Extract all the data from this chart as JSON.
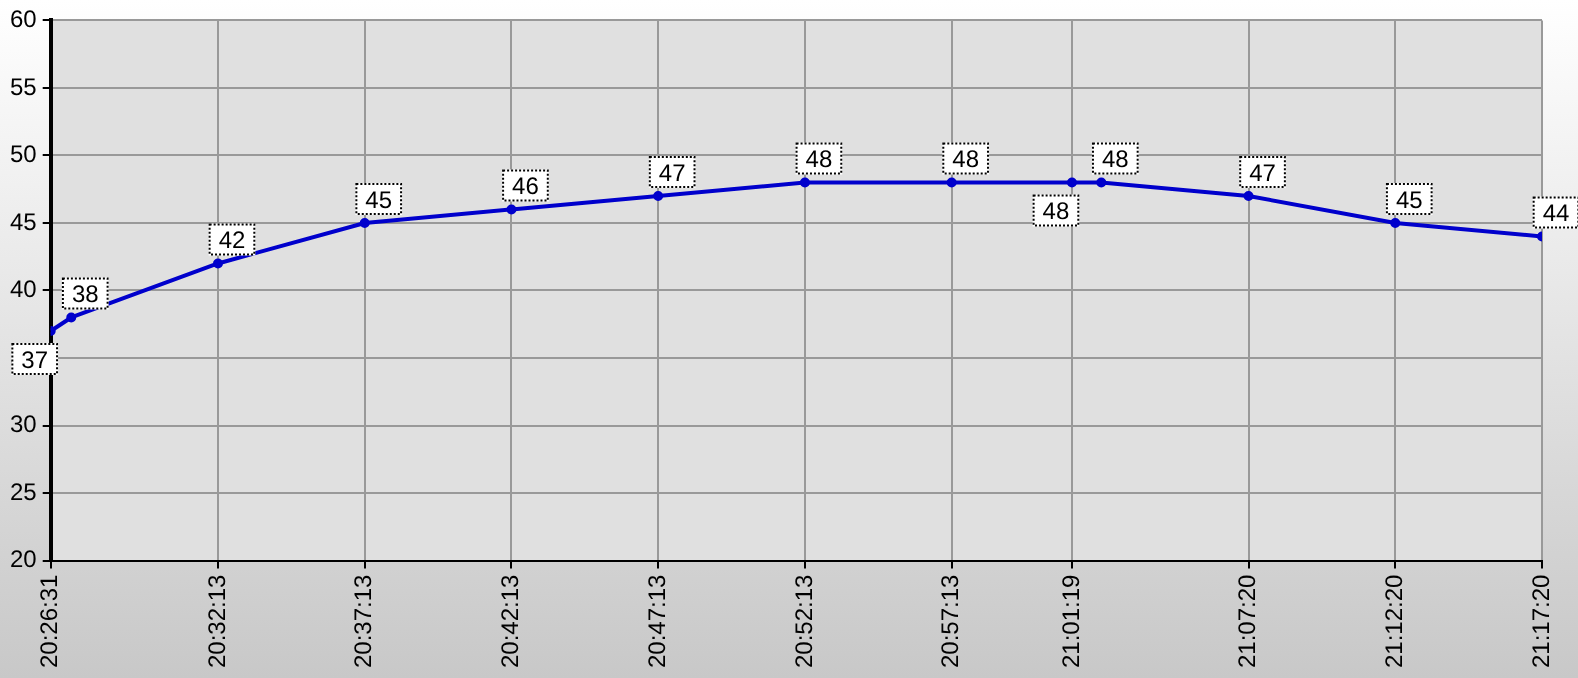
{
  "chart_data": {
    "type": "line",
    "x": [
      20.44194,
      20.45361,
      20.53694,
      20.62028,
      20.70361,
      20.78694,
      20.87028,
      20.95361,
      21.02194,
      21.03861,
      21.12222,
      21.20556,
      21.28889
    ],
    "series": [
      {
        "color": "#0000cc",
        "values": [
          37,
          38,
          42,
          45,
          46,
          47,
          48,
          48,
          48,
          48,
          47,
          45,
          44
        ]
      }
    ],
    "xlim": [
      20.44194,
      21.28889
    ],
    "xticks": [
      {
        "value": 20.44194,
        "label": "20:26:31"
      },
      {
        "value": 20.53694,
        "label": "20:32:13"
      },
      {
        "value": 20.62028,
        "label": "20:37:13"
      },
      {
        "value": 20.70361,
        "label": "20:42:13"
      },
      {
        "value": 20.78694,
        "label": "20:47:13"
      },
      {
        "value": 20.87028,
        "label": "20:52:13"
      },
      {
        "value": 20.95361,
        "label": "20:57:13"
      },
      {
        "value": 21.02194,
        "label": "21:01:19"
      },
      {
        "value": 21.12222,
        "label": "21:07:20"
      },
      {
        "value": 21.20556,
        "label": "21:12:20"
      },
      {
        "value": 21.28889,
        "label": "21:17:20"
      }
    ],
    "ylim": [
      20,
      60
    ],
    "yticks": [
      20,
      25,
      30,
      35,
      40,
      45,
      50,
      55,
      60
    ],
    "grid": true,
    "data_labels": true,
    "marker": "circle",
    "line_style": "solid",
    "legend": false
  }
}
